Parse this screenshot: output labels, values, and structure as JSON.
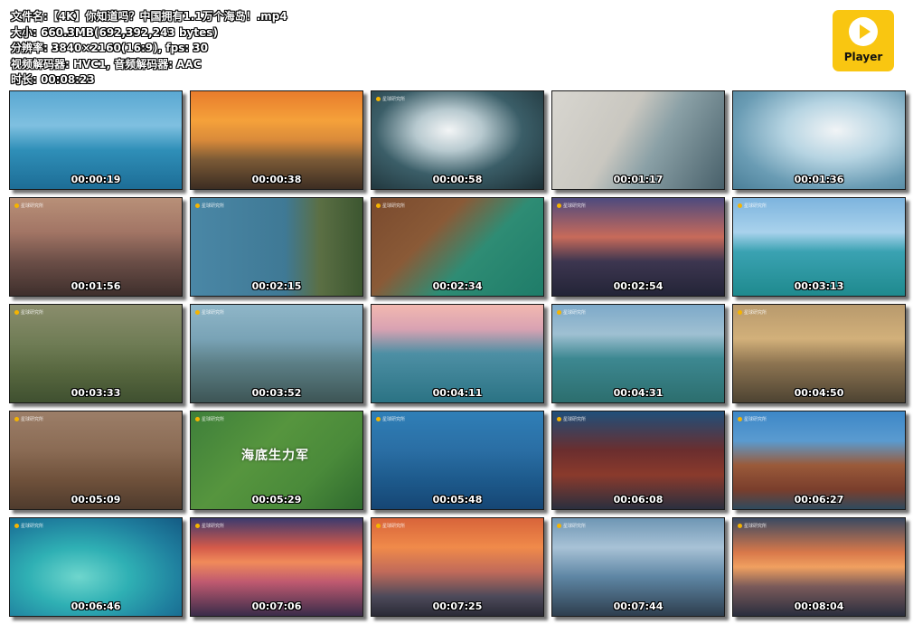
{
  "file_info": {
    "filename": "文件名:【4K】你知道吗？中国拥有1.1万个海岛！.mp4",
    "size": "大小: 660.3MB(692,392,243 bytes)",
    "resolution": "分辨率: 3840×2160(16:9), fps: 30",
    "codecs": "视频解码器: HVC1, 音频解码器: AAC",
    "duration": "时长: 00:08:23"
  },
  "logo": {
    "label": "Player",
    "icon": "play-icon",
    "color": "#f9c611"
  },
  "watermark": "星球研究所",
  "thumbnails": [
    {
      "time": "00:00:19",
      "bg": "linear-gradient(180deg,#5aa8d2 0%,#7fc0e0 35%,#2f8fb8 60%,#1d6d96 100%)"
    },
    {
      "time": "00:00:38",
      "bg": "linear-gradient(180deg,#e87c2c 0%,#f5a13a 30%,#d98a3a 50%,#7b5a36 70%,#3c2d22 100%)"
    },
    {
      "time": "00:00:58",
      "bg": "radial-gradient(ellipse at 45% 40%,#f3f5f6 0%,#b7c9cf 25%,#3b5e68 55%,#1c2f35 100%)"
    },
    {
      "time": "00:01:17",
      "bg": "linear-gradient(120deg,#d8d6d0 0%,#c9c7c0 40%,#8aa0a6 60%,#48606a 100%)"
    },
    {
      "time": "00:01:36",
      "bg": "radial-gradient(ellipse at 60% 40%,#f1f4f6 0%,#b6d4e2 35%,#6a9cb4 70%,#4b7f98 100%)"
    },
    {
      "time": "00:01:56",
      "bg": "linear-gradient(180deg,#b89078 0%,#a27565 35%,#6b4e47 65%,#3e2f2c 100%)"
    },
    {
      "time": "00:02:15",
      "bg": "linear-gradient(90deg,#4a87a6 0%,#3f7995 55%,#5b6f44 75%,#3c5630 100%)"
    },
    {
      "time": "00:02:34",
      "bg": "linear-gradient(135deg,#7a4a2e 0%,#8a5a37 35%,#2e8c74 60%,#1f7c69 100%)"
    },
    {
      "time": "00:02:54",
      "bg": "linear-gradient(180deg,#4d4a7e 0%,#c86a5a 40%,#3d3650 65%,#232437 100%)"
    },
    {
      "time": "00:03:13",
      "bg": "linear-gradient(180deg,#7db4de 0%,#a9d2ec 35%,#3aa2b2 55%,#1f8a8e 100%)"
    },
    {
      "time": "00:03:33",
      "bg": "linear-gradient(180deg,#8a8d6c 0%,#6f7c55 40%,#56663e 70%,#3f5030 100%)"
    },
    {
      "time": "00:03:52",
      "bg": "linear-gradient(180deg,#8fb6c8 0%,#79a3b6 35%,#5c7f86 60%,#3d5555 100%)"
    },
    {
      "time": "00:04:11",
      "bg": "linear-gradient(180deg,#f2b8b0 0%,#d9a2b2 25%,#4d8fa4 50%,#2b7384 100%)"
    },
    {
      "time": "00:04:31",
      "bg": "linear-gradient(180deg,#7da9c9 0%,#9fc0d2 30%,#3d8891 55%,#2c6e6e 100%)"
    },
    {
      "time": "00:04:50",
      "bg": "linear-gradient(180deg,#b89a6d 0%,#d2b07a 35%,#8d7451 60%,#4d4332 100%)"
    },
    {
      "time": "00:05:09",
      "bg": "linear-gradient(180deg,#9c7e68 0%,#8a6b54 40%,#6f513b 70%,#4f3b2d 100%)"
    },
    {
      "time": "00:05:29",
      "bg": "linear-gradient(135deg,#3e7f3a 0%,#56953e 40%,#4a8a3a 70%,#2f6a2e 100%)",
      "caption": "海底生力军"
    },
    {
      "time": "00:05:48",
      "bg": "linear-gradient(180deg,#2f7fb7 0%,#2a6ea4 40%,#1d5a8c 70%,#164674 100%)"
    },
    {
      "time": "00:06:08",
      "bg": "linear-gradient(180deg,#1f4f7a 0%,#6b2e2e 40%,#8a3a2c 65%,#2a2f3e 100%)"
    },
    {
      "time": "00:06:27",
      "bg": "linear-gradient(180deg,#3d87c7 0%,#5a9bd0 30%,#9a5a3a 55%,#7a3e2c 80%,#2e4a5e 100%)"
    },
    {
      "time": "00:06:46",
      "bg": "radial-gradient(ellipse at 40% 60%,#6fd6cd 0%,#2fb0b4 35%,#1f7f9e 70%,#145b84 100%)"
    },
    {
      "time": "00:07:06",
      "bg": "linear-gradient(180deg,#3c3a6e 0%,#d45a4a 30%,#f08a5a 45%,#c05a70 65%,#3a2c4a 100%)"
    },
    {
      "time": "00:07:25",
      "bg": "linear-gradient(180deg,#d8643a 0%,#f08a4a 30%,#c06a5a 55%,#4d4a5a 80%,#2a2a36 100%)"
    },
    {
      "time": "00:07:44",
      "bg": "linear-gradient(180deg,#6e96b4 0%,#a8c2d6 30%,#5e86a4 60%,#2e3e4e 100%)"
    },
    {
      "time": "00:08:04",
      "bg": "linear-gradient(180deg,#3a4a62 0%,#d8784a 35%,#f0a060 50%,#7a5a5a 70%,#2a2e3e 100%)"
    }
  ]
}
